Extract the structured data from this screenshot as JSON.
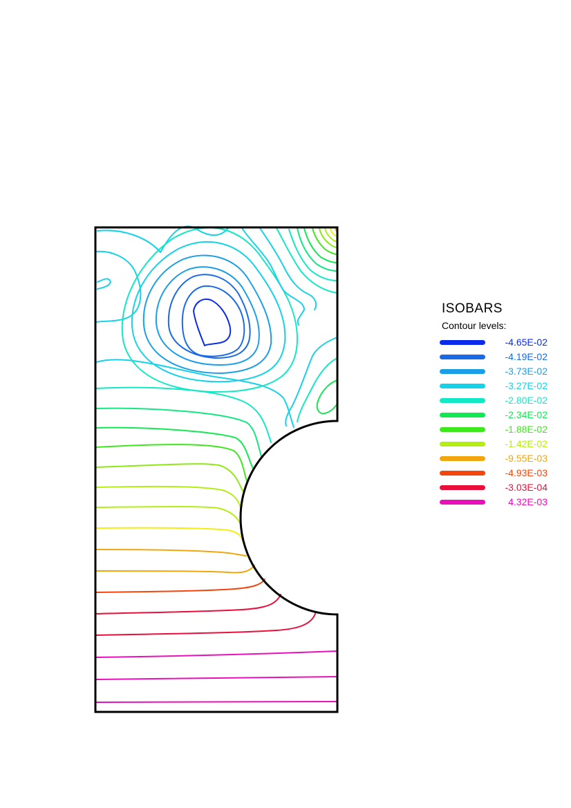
{
  "legend": {
    "title": "ISOBARS",
    "subtitle": "Contour levels:",
    "levels": [
      {
        "label": "-4.65E-02",
        "value": -0.0465,
        "color": "#0a2be8"
      },
      {
        "label": "-4.19E-02",
        "value": -0.0419,
        "color": "#1a6ae8"
      },
      {
        "label": "-3.73E-02",
        "value": -0.0373,
        "color": "#1b9ee8"
      },
      {
        "label": "-3.27E-02",
        "value": -0.0327,
        "color": "#15d2e8"
      },
      {
        "label": "-2.80E-02",
        "value": -0.028,
        "color": "#12e8c4"
      },
      {
        "label": "-2.34E-02",
        "value": -0.0234,
        "color": "#12e852"
      },
      {
        "label": "-1.88E-02",
        "value": -0.0188,
        "color": "#3ee81c"
      },
      {
        "label": "-1.42E-02",
        "value": -0.0142,
        "color": "#b4ee12"
      },
      {
        "label": "-9.55E-03",
        "value": -0.00955,
        "color": "#f2a60e"
      },
      {
        "label": "-4.93E-03",
        "value": -0.00493,
        "color": "#f2460e"
      },
      {
        "label": "-3.03E-04",
        "value": -0.000303,
        "color": "#ea0f3a"
      },
      {
        "label": "4.32E-03",
        "value": 0.00432,
        "color": "#ea10b8"
      }
    ]
  }
}
